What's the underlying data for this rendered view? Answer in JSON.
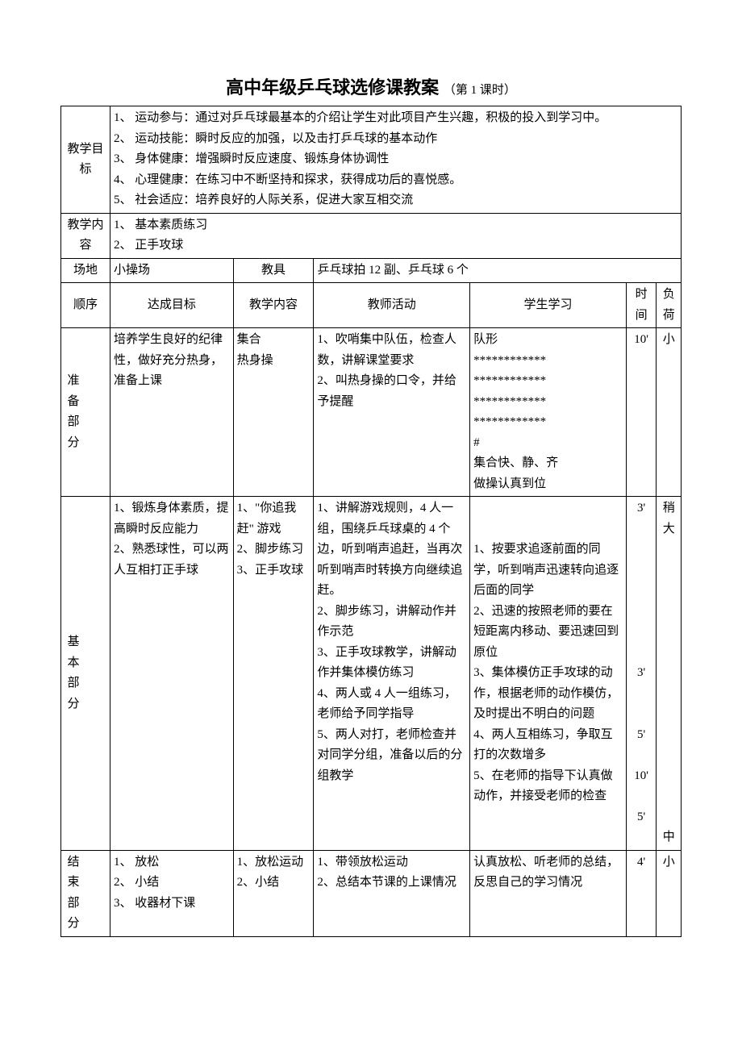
{
  "title": "高中年级乒乓球选修课教案",
  "subtitle": "（第 1 课时）",
  "rows": {
    "objectives": {
      "label": "教学目标",
      "items": [
        "1、  运动参与：通过对乒乓球最基本的介绍让学生对此项目产生兴趣，积极的投入到学习中。",
        "2、  运动技能：瞬时反应的加强，以及击打乒乓球的基本动作",
        "3、  身体健康：增强瞬时反应速度、锻炼身体协调性",
        "4、  心理健康：在练习中不断坚持和探求，获得成功后的喜悦感。",
        "5、  社会适应：培养良好的人际关系，促进大家互相交流"
      ]
    },
    "content": {
      "label": "教学内容",
      "items": [
        "1、  基本素质练习",
        "2、  正手攻球"
      ]
    },
    "venue": {
      "label": "场地",
      "value": "小操场"
    },
    "equip": {
      "label": "教具",
      "value": "乒乓球拍 12 副、乒乓球 6 个"
    },
    "header": {
      "seq": "顺序",
      "goal": "达成目标",
      "teach": "教学内容",
      "teacher": "教师活动",
      "student": "学生学习",
      "time": "时间",
      "load": "负荷"
    },
    "prep": {
      "label": "准备部分",
      "goal": "培养学生良好的纪律性，做好充分热身，准备上课",
      "teach": "集合\n热身操",
      "teacher": "1、吹哨集中队伍，检查人数，讲解课堂要求\n2、叫热身操的口令，并给予提醒",
      "student": "队形\n************\n************\n************\n************\n#\n集合快、静、齐\n做操认真到位",
      "time": "10'",
      "load": "小"
    },
    "main": {
      "label": "基本部分",
      "goal": "1、锻炼身体素质，提高瞬时反应能力\n2、熟悉球性，可以两人互相打正手球",
      "teach": "1、\"你追我赶\" 游戏\n2、脚步练习\n3、正手攻球",
      "teacher": "1、讲解游戏规则，4 人一组，围绕乒乓球桌的 4 个边，听到哨声追赶，当再次听到哨声时转换方向继续追赶。\n2、脚步练习，讲解动作并作示范\n3、正手攻球教学，讲解动作并集体模仿练习\n4、两人或 4 人一组练习，老师给予同学指导\n5、两人对打，老师检查并对同学分组，准备以后的分组教学\n",
      "student": "\n\n1、按要求追逐前面的同学，听到哨声迅速转向追逐后面的同学\n2、迅速的按照老师的要在短距离内移动、要迅速回到原位\n3、集体模仿正手攻球的动作，根据老师的动作模仿，及时提出不明白的问题\n4、两人互相练习，争取互打的次数增多\n5、在老师的指导下认真做动作，并接受老师的检查",
      "times": [
        "3'",
        "",
        "",
        "",
        "",
        "",
        "",
        "",
        "3'",
        "",
        "",
        "5'",
        "",
        "10'",
        "",
        "5'",
        ""
      ],
      "load_top": "稍大",
      "load_bot": "中"
    },
    "end": {
      "label": "结束部分",
      "goal": "1、  放松\n2、  小结\n3、  收器材下课",
      "teach": "1、放松运动\n2、小结",
      "teacher": "1、带领放松运动\n2、总结本节课的上课情况",
      "student": "认真放松、听老师的总结，反思自己的学习情况",
      "time": "4'",
      "load": "小"
    }
  }
}
